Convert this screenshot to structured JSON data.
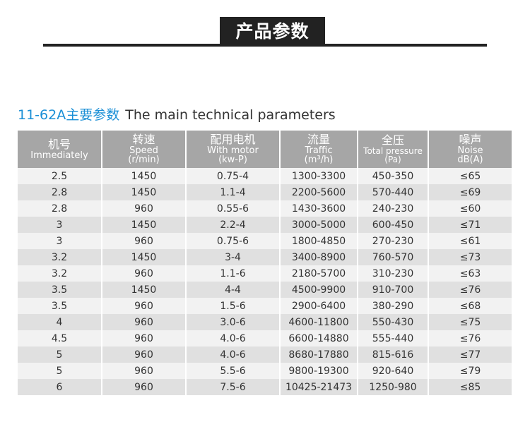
{
  "banner": {
    "title": "产品参数"
  },
  "section": {
    "title_cn": "11-62A主要参数",
    "title_en": "The main technical parameters"
  },
  "table": {
    "headers": [
      {
        "cn": "机号",
        "en": "Immediately",
        "unit": ""
      },
      {
        "cn": "转速",
        "en": "Speed",
        "unit": "(r/min)"
      },
      {
        "cn": "配用电机",
        "en": "With motor",
        "unit": "(kw-P)"
      },
      {
        "cn": "流量",
        "en": "Traffic",
        "unit": "(m³/h)"
      },
      {
        "cn": "全压",
        "en": "Total pressure",
        "unit": "(Pa)"
      },
      {
        "cn": "噪声",
        "en": "Noise",
        "unit": "dB(A)"
      }
    ],
    "rows": [
      [
        "2.5",
        "1450",
        "0.75-4",
        "1300-3300",
        "450-350",
        "≤65"
      ],
      [
        "2.8",
        "1450",
        "1.1-4",
        "2200-5600",
        "570-440",
        "≤69"
      ],
      [
        "2.8",
        "960",
        "0.55-6",
        "1430-3600",
        "240-230",
        "≤60"
      ],
      [
        "3",
        "1450",
        "2.2-4",
        "3000-5000",
        "600-450",
        "≤71"
      ],
      [
        "3",
        "960",
        "0.75-6",
        "1800-4850",
        "270-230",
        "≤61"
      ],
      [
        "3.2",
        "1450",
        "3-4",
        "3400-8900",
        "760-570",
        "≤73"
      ],
      [
        "3.2",
        "960",
        "1.1-6",
        "2180-5700",
        "310-230",
        "≤63"
      ],
      [
        "3.5",
        "1450",
        "4-4",
        "4500-9900",
        "910-700",
        "≤76"
      ],
      [
        "3.5",
        "960",
        "1.5-6",
        "2900-6400",
        "380-290",
        "≤68"
      ],
      [
        "4",
        "960",
        "3.0-6",
        "4600-11800",
        "550-430",
        "≤75"
      ],
      [
        "4.5",
        "960",
        "4.0-6",
        "6600-14880",
        "555-440",
        "≤76"
      ],
      [
        "5",
        "960",
        "4.0-6",
        "8680-17880",
        "815-616",
        "≤77"
      ],
      [
        "5",
        "960",
        "5.5-6",
        "9800-19300",
        "920-640",
        "≤79"
      ],
      [
        "6",
        "960",
        "7.5-6",
        "10425-21473",
        "1250-980",
        "≤85"
      ]
    ]
  }
}
